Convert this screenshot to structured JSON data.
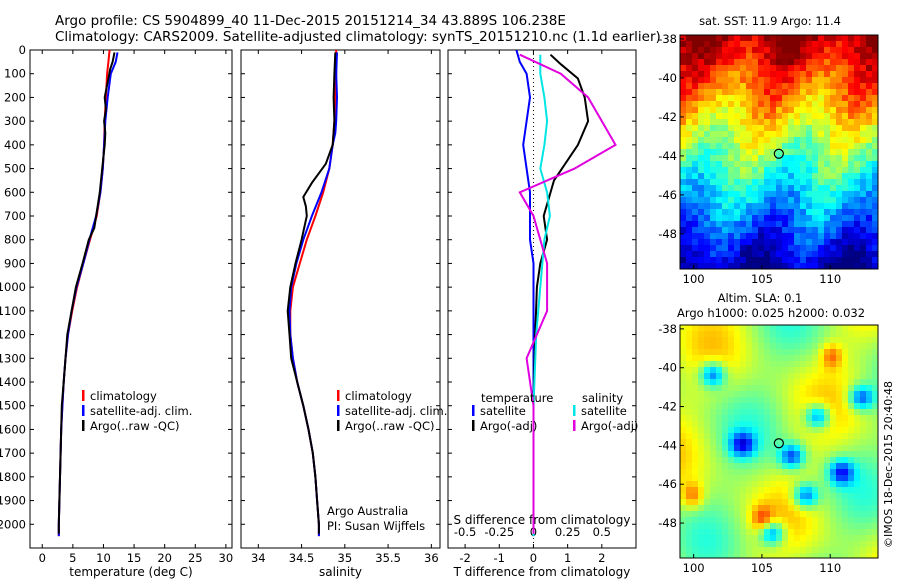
{
  "header": {
    "line1": "Argo profile: CS 5904899_40 11-Dec-2015 20151214_34 43.889S 106.238E",
    "line2": "Climatology: CARS2009. Satellite-adjusted climatology: synTS_20151210.nc (1.1d earlier)"
  },
  "watermark": "©IMOS 18-Dec-2015 20:40:48",
  "colors": {
    "climatology": "#ff0000",
    "satellite": "#0000ff",
    "argo": "#000000",
    "sal_satellite": "#00e5e5",
    "sal_argo": "#e000e0"
  },
  "chart_data": [
    {
      "type": "line",
      "xlabel": "temperature (deg C)",
      "ylabel": "",
      "xlim": [
        -2,
        31
      ],
      "ylim": [
        2100,
        0
      ],
      "xticks": [
        "0",
        "5",
        "10",
        "15",
        "20",
        "25",
        "30"
      ],
      "yticks": [
        "0",
        "100",
        "200",
        "300",
        "400",
        "500",
        "600",
        "700",
        "800",
        "900",
        "1000",
        "1100",
        "1200",
        "1300",
        "1400",
        "1500",
        "1600",
        "1700",
        "1800",
        "1900",
        "2000"
      ],
      "legend": [
        "climatology",
        "satellite-adj. clim.",
        "Argo(..raw -QC)"
      ],
      "series": [
        {
          "name": "climatology",
          "color": "climatology",
          "points": [
            [
              11,
              0
            ],
            [
              10.8,
              50
            ],
            [
              10.6,
              100
            ],
            [
              10.4,
              200
            ],
            [
              10.2,
              300
            ],
            [
              10.1,
              400
            ],
            [
              9.9,
              500
            ],
            [
              9.5,
              600
            ],
            [
              8.9,
              700
            ],
            [
              7.8,
              800
            ],
            [
              6.7,
              900
            ],
            [
              5.7,
              1000
            ],
            [
              4.9,
              1100
            ],
            [
              4.2,
              1200
            ],
            [
              3.8,
              1300
            ],
            [
              3.5,
              1400
            ],
            [
              3.3,
              1500
            ],
            [
              3.1,
              1600
            ],
            [
              3.0,
              1700
            ],
            [
              2.9,
              1800
            ],
            [
              2.8,
              1900
            ],
            [
              2.7,
              2000
            ],
            [
              2.7,
              2050
            ]
          ]
        },
        {
          "name": "satellite-adj. clim.",
          "color": "satellite",
          "points": [
            [
              12.3,
              10
            ],
            [
              12.0,
              50
            ],
            [
              11.2,
              100
            ],
            [
              10.7,
              200
            ],
            [
              10.3,
              300
            ],
            [
              10.1,
              400
            ],
            [
              9.9,
              500
            ],
            [
              9.5,
              600
            ],
            [
              8.8,
              700
            ],
            [
              7.7,
              800
            ],
            [
              6.7,
              900
            ],
            [
              5.6,
              1000
            ],
            [
              4.8,
              1100
            ],
            [
              4.2,
              1200
            ],
            [
              3.8,
              1300
            ],
            [
              3.5,
              1400
            ],
            [
              3.3,
              1500
            ],
            [
              3.1,
              1600
            ],
            [
              3.0,
              1700
            ],
            [
              2.9,
              1800
            ],
            [
              2.8,
              1900
            ],
            [
              2.7,
              2000
            ],
            [
              2.7,
              2050
            ]
          ]
        },
        {
          "name": "Argo(..raw -QC)",
          "color": "argo",
          "points": [
            [
              11.8,
              10
            ],
            [
              11.5,
              50
            ],
            [
              11.1,
              80
            ],
            [
              10.8,
              120
            ],
            [
              10.2,
              200
            ],
            [
              10.4,
              250
            ],
            [
              10.1,
              300
            ],
            [
              10.3,
              350
            ],
            [
              10.2,
              400
            ],
            [
              9.8,
              500
            ],
            [
              9.4,
              600
            ],
            [
              8.5,
              750
            ],
            [
              7.6,
              800
            ],
            [
              6.6,
              900
            ],
            [
              5.5,
              1000
            ],
            [
              4.8,
              1100
            ],
            [
              4.1,
              1200
            ],
            [
              3.8,
              1300
            ],
            [
              3.5,
              1400
            ],
            [
              3.2,
              1500
            ],
            [
              3.1,
              1600
            ],
            [
              3.0,
              1700
            ],
            [
              2.9,
              1800
            ],
            [
              2.8,
              1900
            ],
            [
              2.7,
              2000
            ],
            [
              2.7,
              2040
            ]
          ]
        }
      ]
    },
    {
      "type": "line",
      "xlabel": "salinity",
      "ylabel": "",
      "xlim": [
        33.8,
        36.1
      ],
      "ylim": [
        2100,
        0
      ],
      "xticks": [
        "34",
        "34.5",
        "35",
        "35.5",
        "36"
      ],
      "legend": [
        "climatology",
        "satellite-adj. clim.",
        "Argo(..raw -QC)"
      ],
      "annotation": [
        "Argo Australia",
        "PI: Susan Wijffels"
      ],
      "series": [
        {
          "name": "climatology",
          "color": "climatology",
          "points": [
            [
              34.9,
              0
            ],
            [
              34.9,
              100
            ],
            [
              34.89,
              200
            ],
            [
              34.88,
              300
            ],
            [
              34.86,
              400
            ],
            [
              34.82,
              500
            ],
            [
              34.75,
              600
            ],
            [
              34.66,
              700
            ],
            [
              34.56,
              800
            ],
            [
              34.48,
              900
            ],
            [
              34.4,
              1000
            ],
            [
              34.37,
              1100
            ],
            [
              34.37,
              1200
            ],
            [
              34.4,
              1300
            ],
            [
              34.45,
              1400
            ],
            [
              34.52,
              1500
            ],
            [
              34.58,
              1600
            ],
            [
              34.63,
              1700
            ],
            [
              34.66,
              1800
            ],
            [
              34.68,
              1900
            ],
            [
              34.7,
              2000
            ],
            [
              34.7,
              2050
            ]
          ]
        },
        {
          "name": "satellite-adj. clim.",
          "color": "satellite",
          "points": [
            [
              34.91,
              10
            ],
            [
              34.9,
              100
            ],
            [
              34.91,
              200
            ],
            [
              34.9,
              300
            ],
            [
              34.89,
              350
            ],
            [
              34.86,
              400
            ],
            [
              34.82,
              500
            ],
            [
              34.73,
              600
            ],
            [
              34.62,
              700
            ],
            [
              34.52,
              800
            ],
            [
              34.44,
              900
            ],
            [
              34.38,
              1000
            ],
            [
              34.36,
              1100
            ],
            [
              34.37,
              1200
            ],
            [
              34.4,
              1300
            ],
            [
              34.45,
              1400
            ],
            [
              34.52,
              1500
            ],
            [
              34.58,
              1600
            ],
            [
              34.63,
              1700
            ],
            [
              34.66,
              1800
            ],
            [
              34.68,
              1900
            ],
            [
              34.7,
              2000
            ],
            [
              34.7,
              2050
            ]
          ]
        },
        {
          "name": "Argo(..raw -QC)",
          "color": "argo",
          "points": [
            [
              34.89,
              10
            ],
            [
              34.88,
              100
            ],
            [
              34.87,
              200
            ],
            [
              34.88,
              300
            ],
            [
              34.86,
              400
            ],
            [
              34.78,
              480
            ],
            [
              34.62,
              560
            ],
            [
              34.52,
              620
            ],
            [
              34.55,
              660
            ],
            [
              34.56,
              700
            ],
            [
              34.5,
              800
            ],
            [
              34.43,
              900
            ],
            [
              34.37,
              1000
            ],
            [
              34.34,
              1100
            ],
            [
              34.36,
              1200
            ],
            [
              34.38,
              1300
            ],
            [
              34.45,
              1400
            ],
            [
              34.52,
              1500
            ],
            [
              34.58,
              1600
            ],
            [
              34.63,
              1700
            ],
            [
              34.66,
              1800
            ],
            [
              34.68,
              1900
            ],
            [
              34.7,
              2000
            ],
            [
              34.7,
              2040
            ]
          ]
        }
      ]
    },
    {
      "type": "line",
      "xlabel": "T difference from climatology",
      "xlabel_top": "S difference from climatology",
      "xlim": [
        -2.5,
        3.0
      ],
      "ylim": [
        2100,
        0
      ],
      "xticks": [
        "-2",
        "-1",
        "0",
        "1",
        "2"
      ],
      "xticks_top": [
        "-0.5",
        "-0.25",
        "0",
        "0.25",
        "0.5"
      ],
      "legend_temperature": {
        "title": "temperature",
        "items": [
          "satellite",
          "Argo(-adj)"
        ]
      },
      "legend_salinity": {
        "title": "salinity",
        "items": [
          "satellite",
          "Argo(-adj)"
        ]
      },
      "series": [
        {
          "name": "satellite",
          "group": "temperature",
          "color": "satellite",
          "points": [
            [
              -0.5,
              0
            ],
            [
              -0.4,
              50
            ],
            [
              -0.2,
              100
            ],
            [
              -0.1,
              200
            ],
            [
              -0.2,
              300
            ],
            [
              -0.3,
              400
            ],
            [
              -0.2,
              500
            ],
            [
              -0.1,
              600
            ],
            [
              -0.1,
              700
            ],
            [
              -0.1,
              800
            ],
            [
              0,
              900
            ],
            [
              0,
              1000
            ],
            [
              0,
              1500
            ],
            [
              0,
              2050
            ]
          ]
        },
        {
          "name": "Argo(-adj)",
          "group": "temperature",
          "color": "argo",
          "points": [
            [
              0.5,
              20
            ],
            [
              0.8,
              60
            ],
            [
              1.3,
              120
            ],
            [
              1.5,
              200
            ],
            [
              1.6,
              300
            ],
            [
              1.3,
              400
            ],
            [
              0.6,
              550
            ],
            [
              0.3,
              700
            ],
            [
              0.4,
              800
            ],
            [
              0.2,
              900
            ],
            [
              0.1,
              1000
            ],
            [
              0.05,
              1200
            ],
            [
              0,
              1500
            ],
            [
              0,
              2040
            ]
          ]
        },
        {
          "name": "satellite",
          "group": "salinity",
          "color": "sal_satellite",
          "points": [
            [
              0.05,
              20
            ],
            [
              0.05,
              100
            ],
            [
              0.08,
              200
            ],
            [
              0.1,
              300
            ],
            [
              0.08,
              400
            ],
            [
              0.05,
              500
            ],
            [
              0.1,
              600
            ],
            [
              0.12,
              700
            ],
            [
              0.08,
              800
            ],
            [
              0.05,
              1000
            ],
            [
              0.02,
              1200
            ],
            [
              0,
              1500
            ],
            [
              0,
              2050
            ]
          ]
        },
        {
          "name": "Argo(-adj)",
          "group": "salinity",
          "color": "sal_argo",
          "points": [
            [
              -0.1,
              20
            ],
            [
              0.2,
              100
            ],
            [
              0.4,
              200
            ],
            [
              0.5,
              300
            ],
            [
              0.6,
              400
            ],
            [
              0.3,
              500
            ],
            [
              -0.1,
              600
            ],
            [
              0.0,
              700
            ],
            [
              0.1,
              900
            ],
            [
              0.1,
              1100
            ],
            [
              -0.05,
              1300
            ],
            [
              0,
              1500
            ],
            [
              0,
              2040
            ]
          ]
        }
      ]
    },
    {
      "type": "heatmap",
      "title": "sat. SST: 11.9 Argo: 11.4",
      "xlim": [
        99,
        113.5
      ],
      "ylim": [
        -49.8,
        -37.8
      ],
      "xticks": [
        "100",
        "105",
        "110"
      ],
      "yticks": [
        "-38",
        "-40",
        "-42",
        "-44",
        "-46",
        "-48"
      ],
      "marker": {
        "lon": 106.238,
        "lat": -43.889
      }
    },
    {
      "type": "heatmap",
      "title_line1": "Altim. SLA: 0.1",
      "title_line2": "Argo h1000: 0.025 h2000: 0.032",
      "xlim": [
        99,
        113.5
      ],
      "ylim": [
        -49.8,
        -37.8
      ],
      "xticks": [
        "100",
        "105",
        "110"
      ],
      "yticks": [
        "-38",
        "-40",
        "-42",
        "-44",
        "-46",
        "-48"
      ],
      "marker": {
        "lon": 106.238,
        "lat": -43.889
      }
    }
  ]
}
